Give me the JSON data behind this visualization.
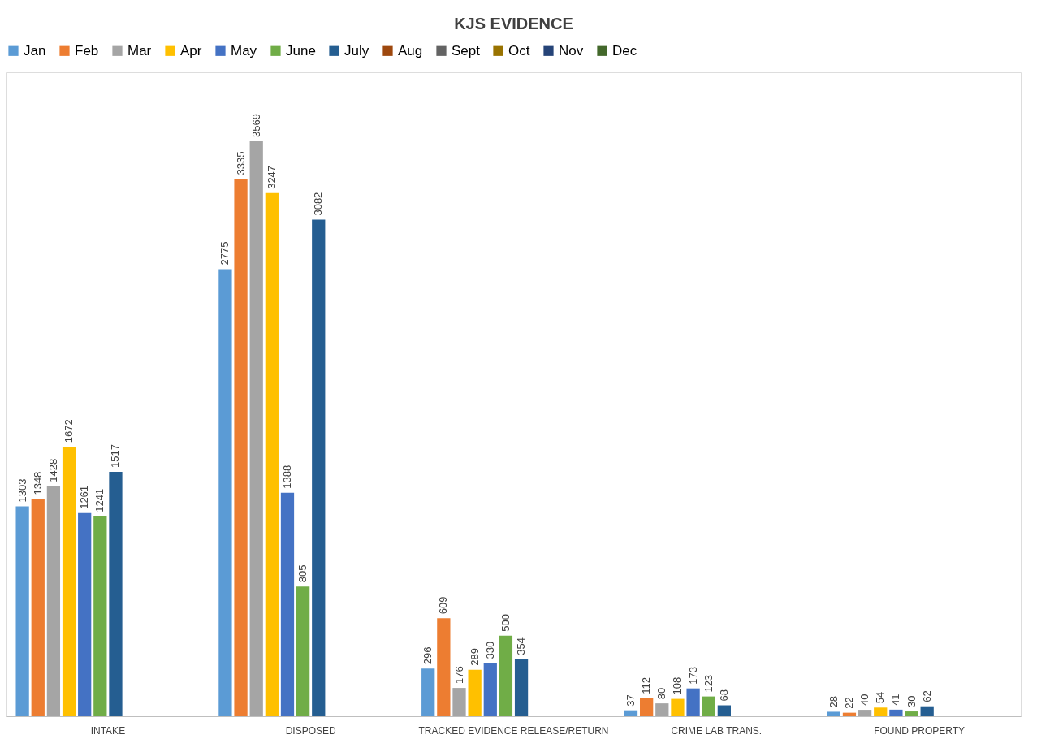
{
  "chart_data": {
    "type": "bar",
    "title": "KJS EVIDENCE",
    "categories": [
      "INTAKE",
      "DISPOSED",
      "TRACKED EVIDENCE RELEASE/RETURN",
      "CRIME LAB TRANS.",
      "FOUND PROPERTY"
    ],
    "series": [
      {
        "name": "Jan",
        "color": "#5b9bd5",
        "values": [
          1303,
          2775,
          296,
          37,
          28
        ]
      },
      {
        "name": "Feb",
        "color": "#ed7d31",
        "values": [
          1348,
          3335,
          609,
          112,
          22
        ]
      },
      {
        "name": "Mar",
        "color": "#a5a5a5",
        "values": [
          1428,
          3569,
          176,
          80,
          40
        ]
      },
      {
        "name": "Apr",
        "color": "#ffc000",
        "values": [
          1672,
          3247,
          289,
          108,
          54
        ]
      },
      {
        "name": "May",
        "color": "#4472c4",
        "values": [
          1261,
          1388,
          330,
          173,
          41
        ]
      },
      {
        "name": "June",
        "color": "#70ad47",
        "values": [
          1241,
          805,
          500,
          123,
          30
        ]
      },
      {
        "name": "July",
        "color": "#255e91",
        "values": [
          1517,
          3082,
          354,
          68,
          62
        ]
      },
      {
        "name": "Aug",
        "color": "#9e480e",
        "values": [
          null,
          null,
          null,
          null,
          null
        ]
      },
      {
        "name": "Sept",
        "color": "#636363",
        "values": [
          null,
          null,
          null,
          null,
          null
        ]
      },
      {
        "name": "Oct",
        "color": "#997300",
        "values": [
          null,
          null,
          null,
          null,
          null
        ]
      },
      {
        "name": "Nov",
        "color": "#264478",
        "values": [
          null,
          null,
          null,
          null,
          null
        ]
      },
      {
        "name": "Dec",
        "color": "#43682b",
        "values": [
          null,
          null,
          null,
          null,
          null
        ]
      }
    ],
    "data_labels": true,
    "legend": "top",
    "grid": false,
    "tick_labels": "x"
  }
}
